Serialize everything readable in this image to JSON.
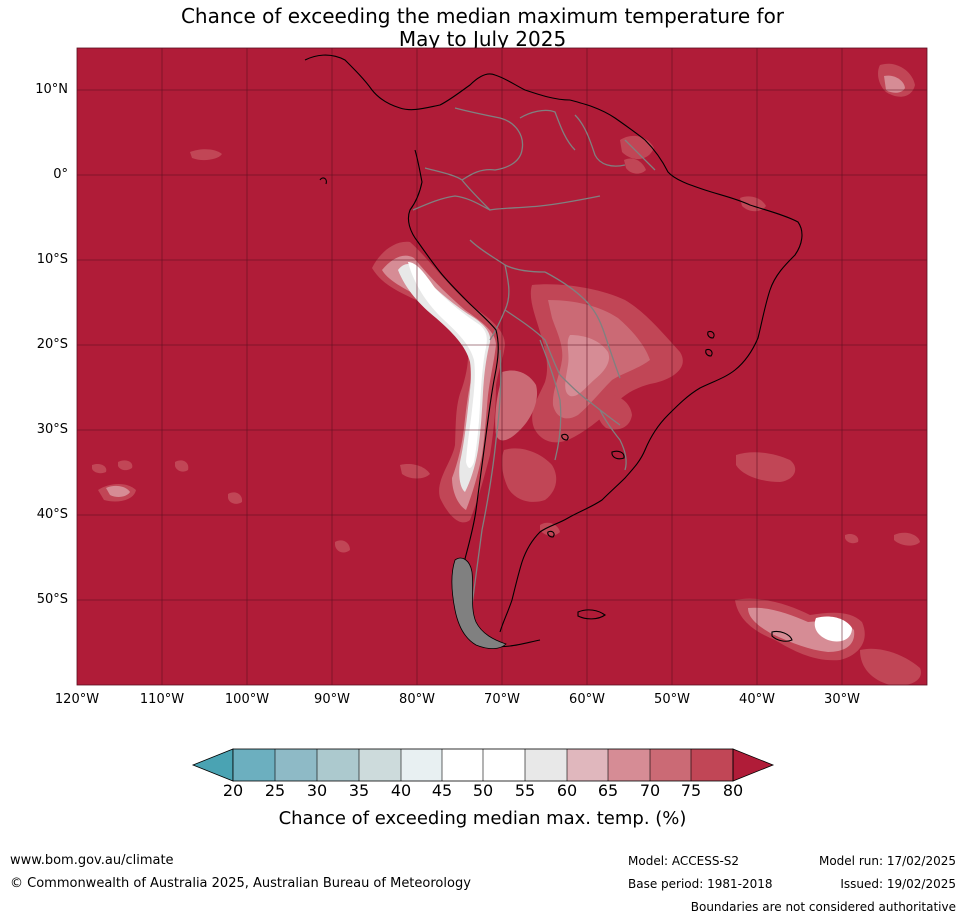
{
  "title": {
    "line1": "Chance of exceeding the median maximum temperature for",
    "line2": "May to July 2025"
  },
  "map": {
    "lat_labels": [
      "10°N",
      "0°",
      "10°S",
      "20°S",
      "30°S",
      "40°S",
      "50°S"
    ],
    "lon_labels": [
      "120°W",
      "110°W",
      "100°W",
      "90°W",
      "80°W",
      "70°W",
      "60°W",
      "50°W",
      "40°W",
      "30°W"
    ],
    "colors": {
      "background": "#b01c38",
      "grid": "#5a1020",
      "coast": "#000000",
      "borders": "#808080"
    }
  },
  "colorbar": {
    "ticks": [
      "20",
      "25",
      "30",
      "35",
      "40",
      "45",
      "50",
      "55",
      "60",
      "65",
      "70",
      "75",
      "80"
    ],
    "colors": [
      "#4aa3b3",
      "#6cafbf",
      "#8ebac6",
      "#acc9ce",
      "#cddbdc",
      "#e8f0f2",
      "#ffffff",
      "#ffffff",
      "#e8e8e8",
      "#e0b7bd",
      "#d68c95",
      "#cb6a75",
      "#c14656",
      "#b01c38"
    ],
    "label": "Chance of exceeding median max. temp. (%)"
  },
  "footer": {
    "website": "www.bom.gov.au/climate",
    "copyright": "© Commonwealth of Australia 2025, Australian Bureau of Meteorology",
    "model": "Model: ACCESS-S2",
    "base_period": "Base period: 1981-2018",
    "model_run": "Model run: 17/02/2025",
    "issued": "Issued: 19/02/2025",
    "disclaimer": "Boundaries are not considered authoritative"
  }
}
